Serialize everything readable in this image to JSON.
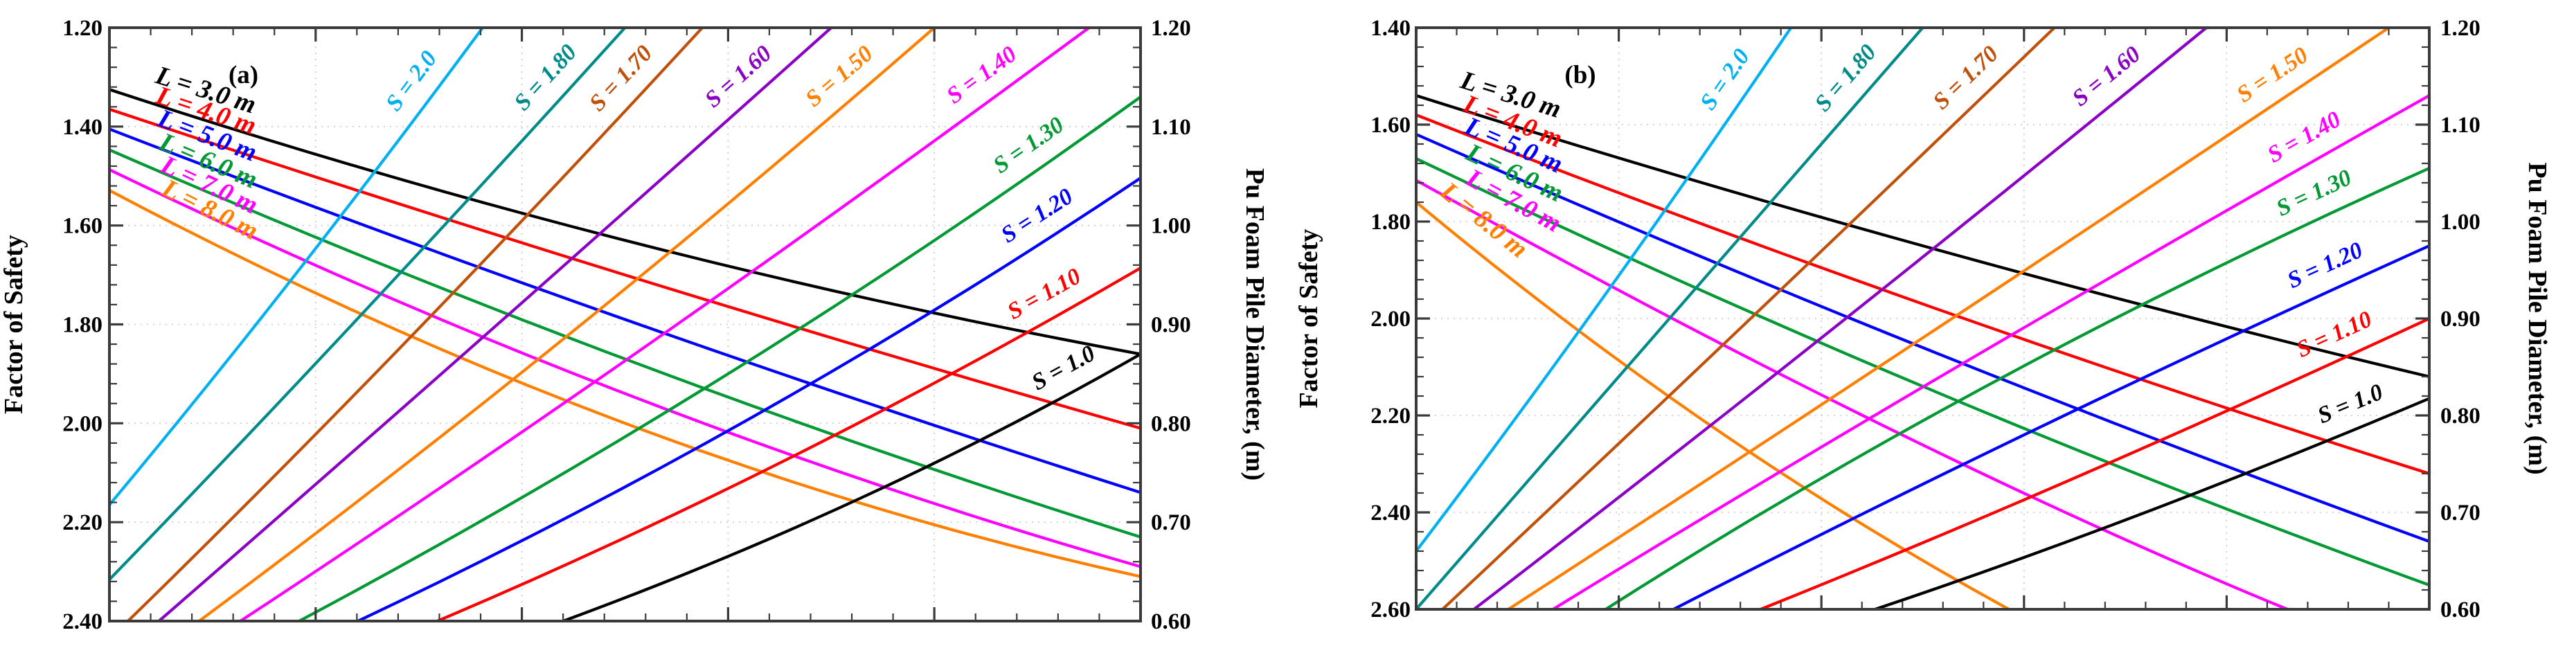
{
  "figure": {
    "description": "Two-panel pile design chart relating Factor of Safety to PU foam pile diameter for pile lengths L and settlement-ratio curves S",
    "background": "#ffffff",
    "axis_color": "#3a3a3a",
    "grid_color": "#c9c9c9"
  },
  "chart_data": [
    {
      "type": "line",
      "panel_tag": "(a)",
      "ylabel_left": "Factor of Safety",
      "ylabel_right": "Pu Foam Pile Diameter, (m)",
      "ylim_left": [
        1.2,
        2.4
      ],
      "ylim_right": [
        0.6,
        1.2
      ],
      "left_tick_labels": [
        "1.20",
        "1.40",
        "1.60",
        "1.80",
        "2.00",
        "2.20",
        "2.40"
      ],
      "right_tick_labels": [
        "1.20",
        "1.10",
        "1.00",
        "0.90",
        "0.80",
        "0.70",
        "0.60"
      ],
      "x_tick_labels_visible": false,
      "grid": "dotted at major ticks",
      "legend_position": "labels on curves",
      "series": [
        {
          "label": "L = 3.0 m",
          "family": "L",
          "color": "#000000",
          "points": [
            [
              0,
              1.325
            ],
            [
              0.5,
              1.63
            ],
            [
              1,
              1.86
            ]
          ]
        },
        {
          "label": "L = 4.0 m",
          "family": "L",
          "color": "#ff0000",
          "points": [
            [
              0,
              1.365
            ],
            [
              0.5,
              1.7
            ],
            [
              1,
              2.01
            ]
          ]
        },
        {
          "label": "L = 5.0 m",
          "family": "L",
          "color": "#0000ff",
          "points": [
            [
              0,
              1.405
            ],
            [
              0.5,
              1.79
            ],
            [
              1,
              2.14
            ]
          ]
        },
        {
          "label": "L = 6.0 m",
          "family": "L",
          "color": "#009933",
          "points": [
            [
              0,
              1.447
            ],
            [
              0.5,
              1.87
            ],
            [
              1,
              2.23
            ]
          ]
        },
        {
          "label": "L = 7.0 m",
          "family": "L",
          "color": "#ff00ff",
          "points": [
            [
              0,
              1.487
            ],
            [
              0.5,
              1.94
            ],
            [
              1,
              2.29
            ]
          ]
        },
        {
          "label": "L = 8.0 m",
          "family": "L",
          "color": "#ff8000",
          "points": [
            [
              0,
              1.529
            ],
            [
              0.5,
              2.0
            ],
            [
              1,
              2.31
            ]
          ]
        },
        {
          "label": "S = 2.0",
          "family": "S",
          "color": "#00b0f0",
          "points": [
            [
              0,
              2.165
            ],
            [
              0.18,
              1.7
            ],
            [
              0.362,
              1.2
            ]
          ]
        },
        {
          "label": "S = 1.80",
          "family": "S",
          "color": "#008b8b",
          "points": [
            [
              0,
              2.316
            ],
            [
              0.24,
              1.79
            ],
            [
              0.5,
              1.2
            ]
          ]
        },
        {
          "label": "S = 1.70",
          "family": "S",
          "color": "#c0500a",
          "points": [
            [
              0.018,
              2.4
            ],
            [
              0.29,
              1.83
            ],
            [
              0.575,
              1.2
            ]
          ]
        },
        {
          "label": "S = 1.60",
          "family": "S",
          "color": "#8a00c4",
          "points": [
            [
              0.048,
              2.4
            ],
            [
              0.36,
              1.83
            ],
            [
              0.7,
              1.2
            ]
          ]
        },
        {
          "label": "S = 1.50",
          "family": "S",
          "color": "#ff8000",
          "points": [
            [
              0.087,
              2.4
            ],
            [
              0.44,
              1.83
            ],
            [
              0.8,
              1.2
            ]
          ]
        },
        {
          "label": "S = 1.40",
          "family": "S",
          "color": "#ff00ff",
          "points": [
            [
              0.127,
              2.4
            ],
            [
              0.53,
              1.83
            ],
            [
              0.95,
              1.2
            ]
          ]
        },
        {
          "label": "S = 1.30",
          "family": "S",
          "color": "#009933",
          "points": [
            [
              0.184,
              2.4
            ],
            [
              0.6,
              1.9
            ],
            [
              1,
              1.34
            ]
          ]
        },
        {
          "label": "S = 1.20",
          "family": "S",
          "color": "#0000ff",
          "points": [
            [
              0.241,
              2.4
            ],
            [
              0.63,
              1.98
            ],
            [
              1,
              1.504
            ]
          ]
        },
        {
          "label": "S = 1.10",
          "family": "S",
          "color": "#ff0000",
          "points": [
            [
              0.318,
              2.4
            ],
            [
              0.66,
              2.07
            ],
            [
              1,
              1.686
            ]
          ]
        },
        {
          "label": "S = 1.0",
          "family": "S",
          "color": "#000000",
          "points": [
            [
              0.44,
              2.4
            ],
            [
              0.73,
              2.15
            ],
            [
              1,
              1.86
            ]
          ]
        }
      ]
    },
    {
      "type": "line",
      "panel_tag": "(b)",
      "ylabel_left": "Factor of Safety",
      "ylabel_right": "Pu Foam Pile Diameter, (m)",
      "ylim_left": [
        1.4,
        2.6
      ],
      "ylim_right": [
        0.6,
        1.2
      ],
      "left_tick_labels": [
        "1.40",
        "1.60",
        "1.80",
        "2.00",
        "2.20",
        "2.40",
        "2.60"
      ],
      "right_tick_labels": [
        "1.20",
        "1.10",
        "1.00",
        "0.90",
        "0.80",
        "0.70",
        "0.60"
      ],
      "x_tick_labels_visible": false,
      "grid": "dotted at major ticks",
      "legend_position": "labels on curves",
      "series": [
        {
          "label": "L = 3.0 m",
          "family": "L",
          "color": "#000000",
          "points": [
            [
              0,
              1.54
            ],
            [
              0.5,
              1.85
            ],
            [
              1,
              2.12
            ]
          ]
        },
        {
          "label": "L = 4.0 m",
          "family": "L",
          "color": "#ff0000",
          "points": [
            [
              0,
              1.58
            ],
            [
              0.5,
              1.97
            ],
            [
              1,
              2.32
            ]
          ]
        },
        {
          "label": "L = 5.0 m",
          "family": "L",
          "color": "#0000ff",
          "points": [
            [
              0,
              1.62
            ],
            [
              0.5,
              2.06
            ],
            [
              1,
              2.46
            ]
          ]
        },
        {
          "label": "L = 6.0 m",
          "family": "L",
          "color": "#009933",
          "points": [
            [
              0,
              1.67
            ],
            [
              0.5,
              2.14
            ],
            [
              1,
              2.55
            ]
          ]
        },
        {
          "label": "L = 7.0 m",
          "family": "L",
          "color": "#ff00ff",
          "points": [
            [
              0,
              1.715
            ],
            [
              0.46,
              2.22
            ],
            [
              0.86,
              2.6
            ]
          ]
        },
        {
          "label": "L = 8.0 m",
          "family": "L",
          "color": "#ff8000",
          "points": [
            [
              0,
              1.76
            ],
            [
              0.29,
              2.22
            ],
            [
              0.585,
              2.6
            ]
          ]
        },
        {
          "label": "S = 2.0",
          "family": "S",
          "color": "#00b0f0",
          "points": [
            [
              0,
              2.48
            ],
            [
              0.18,
              1.97
            ],
            [
              0.37,
              1.4
            ]
          ]
        },
        {
          "label": "S = 1.80",
          "family": "S",
          "color": "#008b8b",
          "points": [
            [
              0,
              2.6
            ],
            [
              0.23,
              2.05
            ],
            [
              0.5,
              1.4
            ]
          ]
        },
        {
          "label": "S = 1.70",
          "family": "S",
          "color": "#c0500a",
          "points": [
            [
              0.026,
              2.6
            ],
            [
              0.31,
              2.04
            ],
            [
              0.63,
              1.4
            ]
          ]
        },
        {
          "label": "S = 1.60",
          "family": "S",
          "color": "#8a00c4",
          "points": [
            [
              0.057,
              2.6
            ],
            [
              0.4,
              2.04
            ],
            [
              0.78,
              1.4
            ]
          ]
        },
        {
          "label": "S = 1.50",
          "family": "S",
          "color": "#ff8000",
          "points": [
            [
              0.091,
              2.6
            ],
            [
              0.5,
              2.04
            ],
            [
              0.96,
              1.4
            ]
          ]
        },
        {
          "label": "S = 1.40",
          "family": "S",
          "color": "#ff00ff",
          "points": [
            [
              0.135,
              2.6
            ],
            [
              0.55,
              2.08
            ],
            [
              1,
              1.54
            ]
          ]
        },
        {
          "label": "S = 1.30",
          "family": "S",
          "color": "#009933",
          "points": [
            [
              0.187,
              2.6
            ],
            [
              0.58,
              2.12
            ],
            [
              1,
              1.69
            ]
          ]
        },
        {
          "label": "S = 1.20",
          "family": "S",
          "color": "#0000ff",
          "points": [
            [
              0.254,
              2.6
            ],
            [
              0.62,
              2.22
            ],
            [
              1,
              1.85
            ]
          ]
        },
        {
          "label": "S = 1.10",
          "family": "S",
          "color": "#ff0000",
          "points": [
            [
              0.34,
              2.6
            ],
            [
              0.66,
              2.32
            ],
            [
              1,
              2.0
            ]
          ]
        },
        {
          "label": "S = 1.0",
          "family": "S",
          "color": "#000000",
          "points": [
            [
              0.453,
              2.6
            ],
            [
              0.72,
              2.4
            ],
            [
              1,
              2.165
            ]
          ]
        }
      ]
    }
  ]
}
